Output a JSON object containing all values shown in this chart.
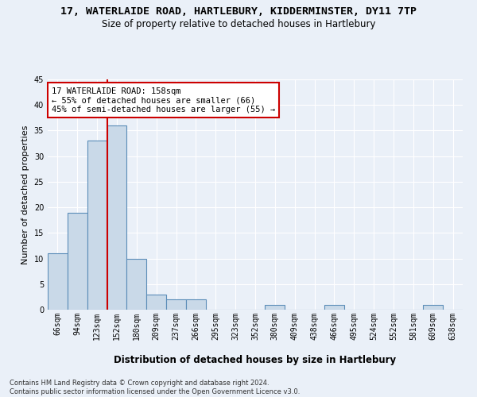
{
  "title": "17, WATERLAIDE ROAD, HARTLEBURY, KIDDERMINSTER, DY11 7TP",
  "subtitle": "Size of property relative to detached houses in Hartlebury",
  "xlabel": "Distribution of detached houses by size in Hartlebury",
  "ylabel": "Number of detached properties",
  "categories": [
    "66sqm",
    "94sqm",
    "123sqm",
    "152sqm",
    "180sqm",
    "209sqm",
    "237sqm",
    "266sqm",
    "295sqm",
    "323sqm",
    "352sqm",
    "380sqm",
    "409sqm",
    "438sqm",
    "466sqm",
    "495sqm",
    "524sqm",
    "552sqm",
    "581sqm",
    "609sqm",
    "638sqm"
  ],
  "values": [
    11,
    19,
    33,
    36,
    10,
    3,
    2,
    2,
    0,
    0,
    0,
    1,
    0,
    0,
    1,
    0,
    0,
    0,
    0,
    1,
    0
  ],
  "bar_color": "#c9d9e8",
  "bar_edge_color": "#5b8db8",
  "vline_x": 2.5,
  "vline_color": "#cc0000",
  "annotation_text": "17 WATERLAIDE ROAD: 158sqm\n← 55% of detached houses are smaller (66)\n45% of semi-detached houses are larger (55) →",
  "annotation_box_color": "#ffffff",
  "annotation_box_edge": "#cc0000",
  "ylim": [
    0,
    45
  ],
  "yticks": [
    0,
    5,
    10,
    15,
    20,
    25,
    30,
    35,
    40,
    45
  ],
  "footnote": "Contains HM Land Registry data © Crown copyright and database right 2024.\nContains public sector information licensed under the Open Government Licence v3.0.",
  "bg_color": "#eaf0f8",
  "grid_color": "#ffffff",
  "title_fontsize": 9.5,
  "subtitle_fontsize": 8.5,
  "xlabel_fontsize": 8.5,
  "ylabel_fontsize": 8,
  "tick_fontsize": 7,
  "annotation_fontsize": 7.5,
  "footnote_fontsize": 6
}
